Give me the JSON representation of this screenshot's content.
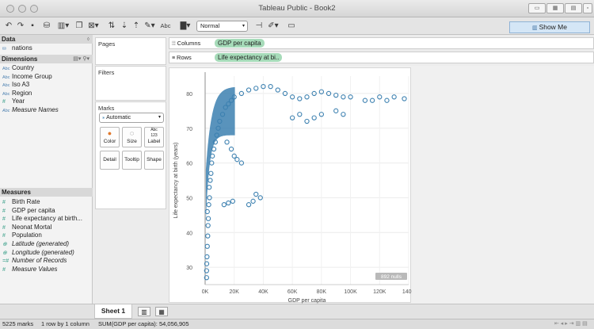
{
  "window": {
    "title": "Tableau Public - Book2"
  },
  "toolbar": {
    "mark_size_select": "Normal",
    "show_me": "Show Me",
    "abc": "Abc"
  },
  "data_pane": {
    "title": "Data",
    "datasource": "nations",
    "dimensions_title": "Dimensions",
    "dimensions": [
      {
        "icon": "Abc",
        "label": "Country",
        "italic": false
      },
      {
        "icon": "Abc",
        "label": "Income Group",
        "italic": false
      },
      {
        "icon": "Abc",
        "label": "Iso A3",
        "italic": false
      },
      {
        "icon": "Abc",
        "label": "Region",
        "italic": false
      },
      {
        "icon": "#",
        "label": "Year",
        "italic": false
      },
      {
        "icon": "Abc",
        "label": "Measure Names",
        "italic": true
      }
    ],
    "measures_title": "Measures",
    "measures": [
      {
        "icon": "#",
        "label": "Birth Rate",
        "italic": false
      },
      {
        "icon": "#",
        "label": "GDP per capita",
        "italic": false
      },
      {
        "icon": "#",
        "label": "Life expectancy at birth...",
        "italic": false
      },
      {
        "icon": "#",
        "label": "Neonat Mortal",
        "italic": false
      },
      {
        "icon": "#",
        "label": "Population",
        "italic": false
      },
      {
        "icon": "globe",
        "label": "Latitude (generated)",
        "italic": true
      },
      {
        "icon": "globe",
        "label": "Longitude (generated)",
        "italic": true
      },
      {
        "icon": "=#",
        "label": "Number of Records",
        "italic": true
      },
      {
        "icon": "#",
        "label": "Measure Values",
        "italic": true
      }
    ]
  },
  "cards": {
    "pages": "Pages",
    "filters": "Filters",
    "marks": "Marks",
    "mark_type": "Automatic",
    "buttons": [
      "Color",
      "Size",
      "Label",
      "Detail",
      "Tooltip",
      "Shape"
    ],
    "label_glyph": "Abc\n123"
  },
  "shelves": {
    "columns_label": "Columns",
    "columns_pill": "GDP per capita",
    "rows_label": "Rows",
    "rows_pill": "Life expectancy at bi.."
  },
  "chart_data": {
    "type": "scatter",
    "xlabel": "GDP per capita",
    "ylabel": "Life expectancy at birth (years)",
    "xlim": [
      0,
      140000
    ],
    "ylim": [
      25,
      85
    ],
    "xticks": [
      "0K",
      "20K",
      "40K",
      "60K",
      "80K",
      "100K",
      "120K",
      "140K"
    ],
    "yticks": [
      "30",
      "40",
      "50",
      "60",
      "70",
      "80"
    ],
    "grid": true,
    "mark_color": "#3c80b0",
    "nulls_badge": "892 nulls",
    "points_approx": [
      [
        1000,
        27
      ],
      [
        1000,
        29
      ],
      [
        1100,
        31
      ],
      [
        1300,
        33
      ],
      [
        1500,
        36
      ],
      [
        1800,
        39
      ],
      [
        2000,
        42
      ],
      [
        2200,
        44
      ],
      [
        1500,
        46
      ],
      [
        2500,
        48
      ],
      [
        3000,
        50
      ],
      [
        2800,
        53
      ],
      [
        3500,
        55
      ],
      [
        4000,
        57
      ],
      [
        4500,
        60
      ],
      [
        5000,
        62
      ],
      [
        6000,
        64
      ],
      [
        7000,
        66
      ],
      [
        8000,
        68
      ],
      [
        9000,
        70
      ],
      [
        10000,
        72
      ],
      [
        12000,
        74
      ],
      [
        14000,
        76
      ],
      [
        16000,
        77
      ],
      [
        18000,
        78
      ],
      [
        20000,
        79
      ],
      [
        25000,
        80
      ],
      [
        30000,
        81
      ],
      [
        35000,
        81.5
      ],
      [
        40000,
        82
      ],
      [
        45000,
        82
      ],
      [
        50000,
        81
      ],
      [
        55000,
        80
      ],
      [
        60000,
        79
      ],
      [
        65000,
        78.5
      ],
      [
        70000,
        79
      ],
      [
        75000,
        80
      ],
      [
        80000,
        80.5
      ],
      [
        85000,
        80
      ],
      [
        90000,
        79.5
      ],
      [
        95000,
        79
      ],
      [
        100000,
        79
      ],
      [
        110000,
        78
      ],
      [
        115000,
        78
      ],
      [
        120000,
        79
      ],
      [
        125000,
        78
      ],
      [
        130000,
        79
      ],
      [
        137000,
        78.5
      ],
      [
        15000,
        66
      ],
      [
        18000,
        64
      ],
      [
        20000,
        62
      ],
      [
        22000,
        61
      ],
      [
        25000,
        60
      ],
      [
        13000,
        48
      ],
      [
        16000,
        48.5
      ],
      [
        19000,
        49
      ],
      [
        30000,
        48
      ],
      [
        33000,
        49
      ],
      [
        35000,
        51
      ],
      [
        38000,
        50
      ],
      [
        60000,
        73
      ],
      [
        65000,
        74
      ],
      [
        70000,
        72
      ],
      [
        75000,
        73
      ],
      [
        80000,
        74
      ],
      [
        90000,
        75
      ],
      [
        95000,
        74
      ]
    ]
  },
  "sheets": {
    "active": "Sheet 1"
  },
  "status": {
    "marks": "5225 marks",
    "dims": "1 row by 1 column",
    "sum": "SUM(GDP per capita): 54,056,905"
  }
}
